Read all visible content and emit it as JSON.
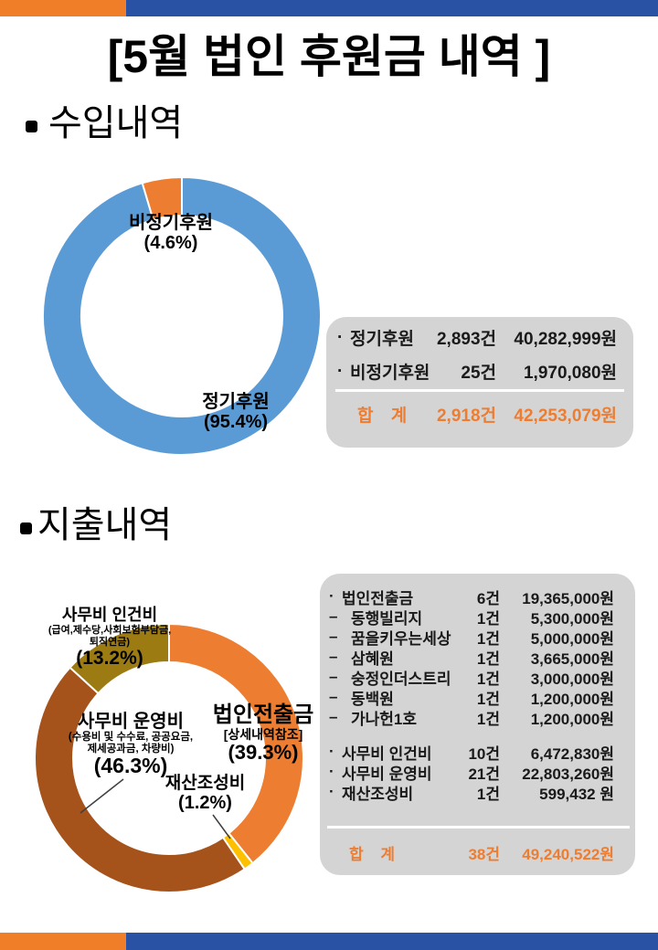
{
  "title": "[5월 법인 후원금 내역 ]",
  "colors": {
    "bar_orange": "#F07D28",
    "bar_blue": "#2A52A4",
    "donut_blue": "#5B9BD5",
    "donut_orange": "#ED7D31",
    "donut_gold": "#FFC000",
    "donut_brown": "#A5521B",
    "donut_olive": "#9C7B13",
    "total_text": "#ED7D31",
    "table_bg": "#D4D4D4"
  },
  "income": {
    "heading": "수입내역",
    "donut_labels": [
      {
        "name": "정기후원",
        "pct": "(95.4%)"
      },
      {
        "name": "비정기후원",
        "pct": "(4.6%)"
      }
    ],
    "table": {
      "rows": [
        {
          "bullet": "·",
          "label": "정기후원",
          "count": "2,893건",
          "amount": "40,282,999원"
        },
        {
          "bullet": "·",
          "label": "비정기후원",
          "count": "25건",
          "amount": "1,970,080원"
        }
      ],
      "total": {
        "label": "합 계",
        "count": "2,918건",
        "amount": "42,253,079원"
      }
    }
  },
  "expense": {
    "heading": "지출내역",
    "donut_labels": {
      "beobin": {
        "name": "법인전출금",
        "sub": "[상세내역참조]",
        "pct": "(39.3%)"
      },
      "jaesan": {
        "name": "재산조성비",
        "pct": "(1.2%)"
      },
      "unyeong": {
        "name": "사무비 운영비",
        "sub1": "(수용비 및  수수료, 공공요금,",
        "sub2": "제세공과금, 차량비)",
        "pct": "(46.3%)"
      },
      "ingeon": {
        "name": "사무비 인건비",
        "sub1": "(급여,제수당,사회보험부담금,",
        "sub2": "퇴직연금)",
        "pct": "(13.2%)"
      }
    },
    "table": {
      "rows": [
        {
          "bullet": "·",
          "label": "법인전출금",
          "count": "6건",
          "amount": "19,365,000원"
        },
        {
          "bullet": "–",
          "label": "동행빌리지",
          "count": "1건",
          "amount": "5,300,000원",
          "indent": true
        },
        {
          "bullet": "–",
          "label": "꿈을키우는세상",
          "count": "1건",
          "amount": "5,000,000원",
          "indent": true
        },
        {
          "bullet": "–",
          "label": "삼혜원",
          "count": "1건",
          "amount": "3,665,000원",
          "indent": true
        },
        {
          "bullet": "–",
          "label": "숭정인더스트리",
          "count": "1건",
          "amount": "3,000,000원",
          "indent": true
        },
        {
          "bullet": "–",
          "label": "동백원",
          "count": "1건",
          "amount": "1,200,000원",
          "indent": true
        },
        {
          "bullet": "–",
          "label": "가나헌1호",
          "count": "1건",
          "amount": "1,200,000원",
          "indent": true
        },
        {
          "spacer": true
        },
        {
          "bullet": "·",
          "label": "사무비 인건비",
          "count": "10건",
          "amount": "6,472,830원"
        },
        {
          "bullet": "·",
          "label": "사무비 운영비",
          "count": "21건",
          "amount": "22,803,260원"
        },
        {
          "bullet": "·",
          "label": "재산조성비",
          "count": "1건",
          "amount": "599,432 원"
        }
      ],
      "total": {
        "label": "합 계",
        "count": "38건",
        "amount": "49,240,522원"
      }
    }
  },
  "chart_data": [
    {
      "type": "pie",
      "subtype": "donut",
      "section": "수입내역",
      "labels": [
        "정기후원",
        "비정기후원"
      ],
      "values_pct": [
        95.4,
        4.6
      ],
      "counts": [
        2893,
        25
      ],
      "amounts_krw": [
        40282999,
        1970080
      ],
      "total": {
        "count": 2918,
        "amount_krw": 42253079
      },
      "colors": [
        "#5B9BD5",
        "#ED7D31"
      ],
      "start_angle_deg": 0,
      "clockwise": true,
      "legend": "data labels on chart"
    },
    {
      "type": "pie",
      "subtype": "donut",
      "section": "지출내역",
      "labels": [
        "법인전출금",
        "재산조성비",
        "사무비 운영비",
        "사무비 인건비"
      ],
      "values_pct": [
        39.3,
        1.2,
        46.3,
        13.2
      ],
      "counts": [
        6,
        1,
        21,
        10
      ],
      "amounts_krw": [
        19365000,
        599432,
        22803260,
        6472830
      ],
      "total": {
        "count": 38,
        "amount_krw": 49240522
      },
      "colors": [
        "#ED7D31",
        "#FFC000",
        "#A5521B",
        "#9C7B13"
      ],
      "start_angle_deg": 0,
      "clockwise": true,
      "legend": "data labels on chart"
    }
  ]
}
